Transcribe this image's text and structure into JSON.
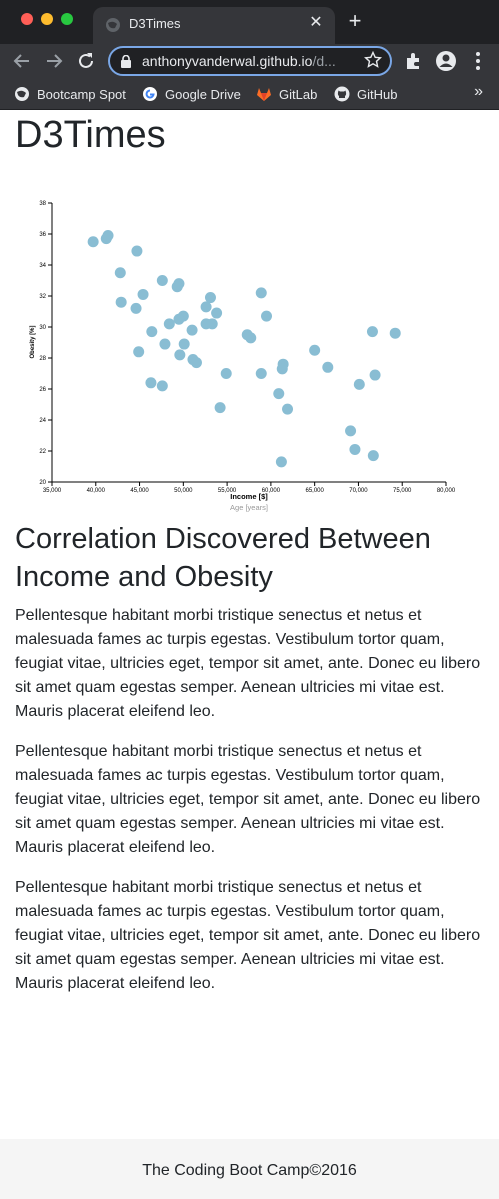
{
  "browser": {
    "tab_title": "D3Times",
    "url_host": "anthonyvanderwal.github.io",
    "url_path": "/d...",
    "bookmarks": [
      {
        "label": "Bootcamp Spot",
        "icon": "globe-icon"
      },
      {
        "label": "Google Drive",
        "icon": "google-icon"
      },
      {
        "label": "GitLab",
        "icon": "gitlab-icon"
      },
      {
        "label": "GitHub",
        "icon": "github-icon"
      }
    ],
    "more_bookmarks": "»"
  },
  "page": {
    "title": "D3Times",
    "heading": "Correlation Discovered Between Income and Obesity",
    "paragraphs": [
      "Pellentesque habitant morbi tristique senectus et netus et malesuada fames ac turpis egestas. Vestibulum tortor quam, feugiat vitae, ultricies eget, tempor sit amet, ante. Donec eu libero sit amet quam egestas semper. Aenean ultricies mi vitae est. Mauris placerat eleifend leo.",
      "Pellentesque habitant morbi tristique senectus et netus et malesuada fames ac turpis egestas. Vestibulum tortor quam, feugiat vitae, ultricies eget, tempor sit amet, ante. Donec eu libero sit amet quam egestas semper. Aenean ultricies mi vitae est. Mauris placerat eleifend leo.",
      "Pellentesque habitant morbi tristique senectus et netus et malesuada fames ac turpis egestas. Vestibulum tortor quam, feugiat vitae, ultricies eget, tempor sit amet, ante. Donec eu libero sit amet quam egestas semper. Aenean ultricies mi vitae est. Mauris placerat eleifend leo."
    ],
    "footer": "The Coding Boot Camp©2016"
  },
  "chart_data": {
    "type": "scatter",
    "xlabel": "Income [$]",
    "xlabel_alt": "Age [years]",
    "ylabel": "Obesity [%]",
    "xlim": [
      35000,
      80000
    ],
    "ylim": [
      20,
      38
    ],
    "x_ticks": [
      "35,000",
      "40,000",
      "45,000",
      "50,000",
      "55,000",
      "60,000",
      "65,000",
      "70,000",
      "75,000",
      "80,000"
    ],
    "y_ticks": [
      "20",
      "22",
      "24",
      "26",
      "28",
      "30",
      "32",
      "34",
      "36",
      "38"
    ],
    "point_color": "#89bdd3",
    "grid": false,
    "points": [
      {
        "x": 39700,
        "y": 35.5
      },
      {
        "x": 41200,
        "y": 35.7
      },
      {
        "x": 41400,
        "y": 35.9
      },
      {
        "x": 44700,
        "y": 34.9
      },
      {
        "x": 42800,
        "y": 33.5
      },
      {
        "x": 47600,
        "y": 33.0
      },
      {
        "x": 49500,
        "y": 32.8
      },
      {
        "x": 49300,
        "y": 32.6
      },
      {
        "x": 45400,
        "y": 32.1
      },
      {
        "x": 42900,
        "y": 31.6
      },
      {
        "x": 44600,
        "y": 31.2
      },
      {
        "x": 53100,
        "y": 31.9
      },
      {
        "x": 52600,
        "y": 31.3
      },
      {
        "x": 53800,
        "y": 30.9
      },
      {
        "x": 50000,
        "y": 30.7
      },
      {
        "x": 49500,
        "y": 30.5
      },
      {
        "x": 48400,
        "y": 30.2
      },
      {
        "x": 52600,
        "y": 30.2
      },
      {
        "x": 53300,
        "y": 30.2
      },
      {
        "x": 46400,
        "y": 29.7
      },
      {
        "x": 51000,
        "y": 29.8
      },
      {
        "x": 57300,
        "y": 29.5
      },
      {
        "x": 57700,
        "y": 29.3
      },
      {
        "x": 47900,
        "y": 28.9
      },
      {
        "x": 50100,
        "y": 28.9
      },
      {
        "x": 44900,
        "y": 28.4
      },
      {
        "x": 49600,
        "y": 28.2
      },
      {
        "x": 51100,
        "y": 27.9
      },
      {
        "x": 51500,
        "y": 27.7
      },
      {
        "x": 54900,
        "y": 27.0
      },
      {
        "x": 58900,
        "y": 32.2
      },
      {
        "x": 59500,
        "y": 30.7
      },
      {
        "x": 61400,
        "y": 27.6
      },
      {
        "x": 61300,
        "y": 27.3
      },
      {
        "x": 58900,
        "y": 27.0
      },
      {
        "x": 65000,
        "y": 28.5
      },
      {
        "x": 66500,
        "y": 27.4
      },
      {
        "x": 46300,
        "y": 26.4
      },
      {
        "x": 47600,
        "y": 26.2
      },
      {
        "x": 60900,
        "y": 25.7
      },
      {
        "x": 54200,
        "y": 24.8
      },
      {
        "x": 61900,
        "y": 24.7
      },
      {
        "x": 71600,
        "y": 29.7
      },
      {
        "x": 74200,
        "y": 29.6
      },
      {
        "x": 71900,
        "y": 26.9
      },
      {
        "x": 70100,
        "y": 26.3
      },
      {
        "x": 69100,
        "y": 23.3
      },
      {
        "x": 69600,
        "y": 22.1
      },
      {
        "x": 71700,
        "y": 21.7
      },
      {
        "x": 61200,
        "y": 21.3
      }
    ]
  }
}
